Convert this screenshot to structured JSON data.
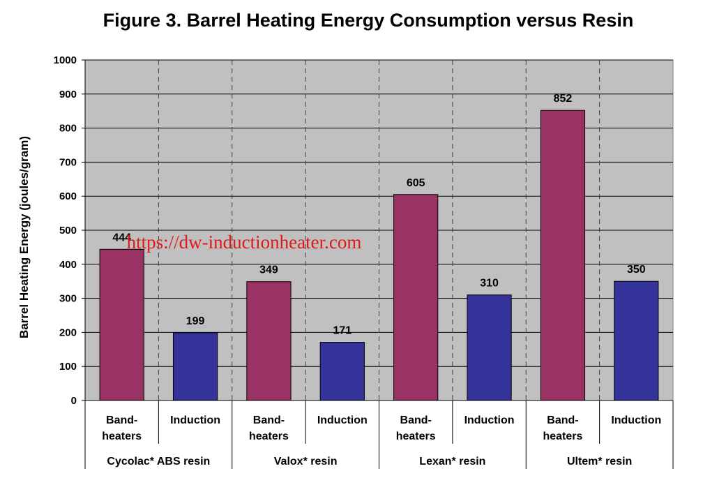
{
  "chart_data": {
    "type": "bar",
    "title": "Figure 3.  Barrel Heating Energy Consumption versus Resin",
    "ylabel": "Barrel Heating Energy (joules/gram)",
    "xlabel": "",
    "ylim": [
      0,
      1000
    ],
    "yticks": [
      "0",
      "100",
      "200",
      "300",
      "400",
      "500",
      "600",
      "700",
      "800",
      "900",
      "1000"
    ],
    "grid": true,
    "legend": "none",
    "groups": [
      {
        "label": "Cycolac* ABS resin",
        "bars": [
          {
            "label": [
              "Band-",
              "heaters"
            ],
            "value": 444,
            "value_label": "444",
            "color": "#993366"
          },
          {
            "label": [
              "Induction"
            ],
            "value": 199,
            "value_label": "199",
            "color": "#333399"
          }
        ]
      },
      {
        "label": "Valox* resin",
        "bars": [
          {
            "label": [
              "Band-",
              "heaters"
            ],
            "value": 349,
            "value_label": "349",
            "color": "#993366"
          },
          {
            "label": [
              "Induction"
            ],
            "value": 171,
            "value_label": "171",
            "color": "#333399"
          }
        ]
      },
      {
        "label": "Lexan* resin",
        "bars": [
          {
            "label": [
              "Band-",
              "heaters"
            ],
            "value": 605,
            "value_label": "605",
            "color": "#993366"
          },
          {
            "label": [
              "Induction"
            ],
            "value": 310,
            "value_label": "310",
            "color": "#333399"
          }
        ]
      },
      {
        "label": "Ultem* resin",
        "bars": [
          {
            "label": [
              "Band-",
              "heaters"
            ],
            "value": 852,
            "value_label": "852",
            "color": "#993366"
          },
          {
            "label": [
              "Induction"
            ],
            "value": 350,
            "value_label": "350",
            "color": "#333399"
          }
        ]
      }
    ],
    "plot_background": "#c0c0c0"
  },
  "watermark": "https://dw-inductionheater.com"
}
